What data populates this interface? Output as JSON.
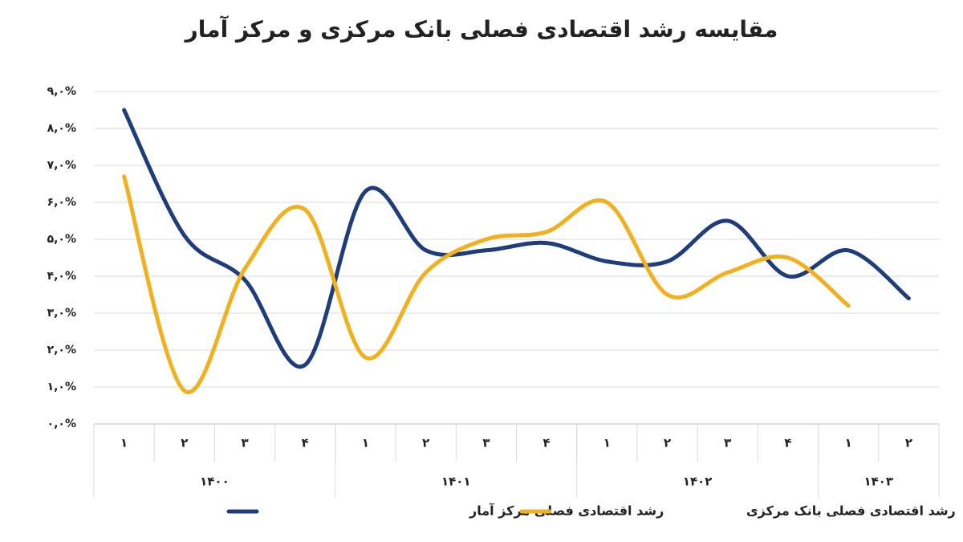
{
  "chart_data": {
    "type": "line",
    "title": "مقایسه رشد اقتصادی فصلی بانک مرکزی و مرکز آمار",
    "categories": [
      "۱",
      "۲",
      "۳",
      "۴",
      "۱",
      "۲",
      "۳",
      "۴",
      "۱",
      "۲",
      "۳",
      "۴",
      "۱",
      "۲"
    ],
    "groups": [
      {
        "label": "۱۴۰۰",
        "count": 4
      },
      {
        "label": "۱۴۰۱",
        "count": 4
      },
      {
        "label": "۱۴۰۲",
        "count": 4
      },
      {
        "label": "۱۴۰۳",
        "count": 2
      }
    ],
    "series": [
      {
        "name": "رشد اقتصادی فصلی مرکز آمار",
        "color": "#1f3d7a",
        "values": [
          8.5,
          5.1,
          3.9,
          1.6,
          6.3,
          4.7,
          4.7,
          4.9,
          4.4,
          4.4,
          5.5,
          4.0,
          4.7,
          3.4
        ]
      },
      {
        "name": "رشد اقتصادی فصلی بانک مرکزی",
        "color": "#f2b01e",
        "values": [
          6.7,
          0.9,
          4.2,
          5.8,
          1.8,
          4.1,
          5.0,
          5.2,
          6.0,
          3.5,
          4.1,
          4.5,
          3.2,
          null
        ]
      }
    ],
    "ylim": [
      0,
      9
    ],
    "yticks": [
      {
        "value": 0,
        "label": "۰,۰%"
      },
      {
        "value": 1,
        "label": "۱,۰%"
      },
      {
        "value": 2,
        "label": "۲,۰%"
      },
      {
        "value": 3,
        "label": "۳,۰%"
      },
      {
        "value": 4,
        "label": "۴,۰%"
      },
      {
        "value": 5,
        "label": "۵,۰%"
      },
      {
        "value": 6,
        "label": "۶,۰%"
      },
      {
        "value": 7,
        "label": "۷,۰%"
      },
      {
        "value": 8,
        "label": "۸,۰%"
      },
      {
        "value": 9,
        "label": "۹,۰%"
      }
    ],
    "grid": true,
    "smooth": true,
    "legend": "bottom"
  }
}
